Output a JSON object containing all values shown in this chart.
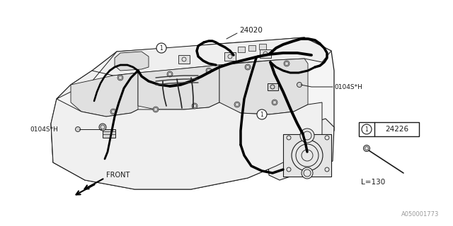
{
  "bg_color": "#ffffff",
  "lc": "#1a1a1a",
  "gray": "#aaaaaa",
  "part_number_main": "24020",
  "part_label_left": "0104S*H",
  "part_label_right": "0104S*H",
  "part_box_number": "24226",
  "part_box_label": "L=130",
  "front_label": "FRONT",
  "watermark": "A050001773",
  "fig_width": 6.4,
  "fig_height": 3.2,
  "dpi": 100
}
